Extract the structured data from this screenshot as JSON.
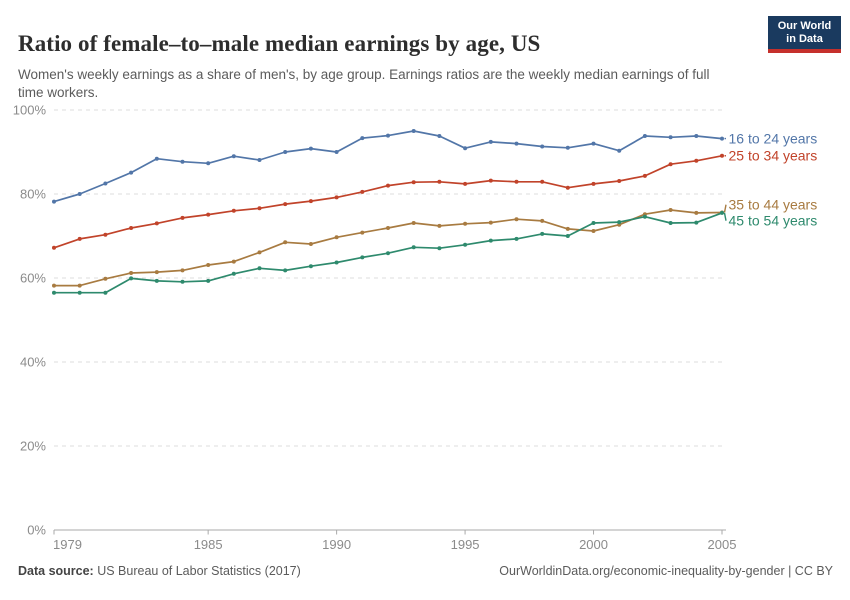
{
  "header": {
    "title": "Ratio of female–to–male median earnings by age, US",
    "subtitle": "Women's weekly earnings as a share of men's, by age group. Earnings ratios are the weekly median earnings of full time workers.",
    "logo": {
      "line1": "Our World",
      "line2": "in Data"
    }
  },
  "chart_data": {
    "type": "line",
    "title": "Ratio of female–to–male median earnings by age, US",
    "xlabel": "",
    "ylabel": "",
    "xlim": [
      1979,
      2005
    ],
    "ylim": [
      0,
      100
    ],
    "xticks": [
      1979,
      1985,
      1990,
      1995,
      2000,
      2005
    ],
    "yticks": [
      0,
      20,
      40,
      60,
      80,
      100
    ],
    "ytick_suffix": "%",
    "grid": "horizontal-dashed",
    "legend_position": "right-direct-labels",
    "x": [
      1979,
      1980,
      1981,
      1982,
      1983,
      1984,
      1985,
      1986,
      1987,
      1988,
      1989,
      1990,
      1991,
      1992,
      1993,
      1994,
      1995,
      1996,
      1997,
      1998,
      1999,
      2000,
      2001,
      2002,
      2003,
      2004,
      2005
    ],
    "series": [
      {
        "name": "16 to 24 years",
        "color": "#5276a8",
        "values": [
          78.2,
          80.0,
          82.5,
          85.1,
          88.4,
          87.7,
          87.3,
          89.0,
          88.1,
          90.0,
          90.8,
          90.0,
          93.3,
          93.9,
          95.0,
          93.8,
          90.9,
          92.4,
          92.0,
          91.3,
          91.0,
          92.0,
          90.3,
          93.8,
          93.5,
          93.8,
          93.2
        ]
      },
      {
        "name": "25 to 34 years",
        "color": "#c1432a",
        "values": [
          67.2,
          69.3,
          70.3,
          71.9,
          73.0,
          74.3,
          75.1,
          76.0,
          76.6,
          77.6,
          78.3,
          79.2,
          80.5,
          82.0,
          82.8,
          82.9,
          82.4,
          83.2,
          82.9,
          82.9,
          81.5,
          82.4,
          83.1,
          84.3,
          87.1,
          87.9,
          89.1
        ]
      },
      {
        "name": "35 to 44 years",
        "color": "#a87b41",
        "values": [
          58.2,
          58.2,
          59.8,
          61.2,
          61.4,
          61.8,
          63.1,
          63.9,
          66.1,
          68.5,
          68.1,
          69.7,
          70.8,
          71.9,
          73.1,
          72.4,
          72.9,
          73.2,
          74.0,
          73.6,
          71.7,
          71.2,
          72.7,
          75.2,
          76.2,
          75.5,
          75.6
        ]
      },
      {
        "name": "45 to 54 years",
        "color": "#2e8a6d",
        "values": [
          56.5,
          56.5,
          56.5,
          59.9,
          59.3,
          59.1,
          59.3,
          61.0,
          62.3,
          61.8,
          62.8,
          63.7,
          64.9,
          65.9,
          67.3,
          67.1,
          67.9,
          68.9,
          69.3,
          70.5,
          70.0,
          73.1,
          73.3,
          74.6,
          73.1,
          73.2,
          75.5
        ]
      }
    ],
    "colors": {
      "grid": "#dcdcdc",
      "axis": "#a9a9a9",
      "tick_label": "#8b8b8b"
    }
  },
  "footer": {
    "datasource_label": "Data source:",
    "datasource_value": " US Bureau of Labor Statistics (2017)",
    "credit": "OurWorldinData.org/economic-inequality-by-gender | CC BY"
  }
}
